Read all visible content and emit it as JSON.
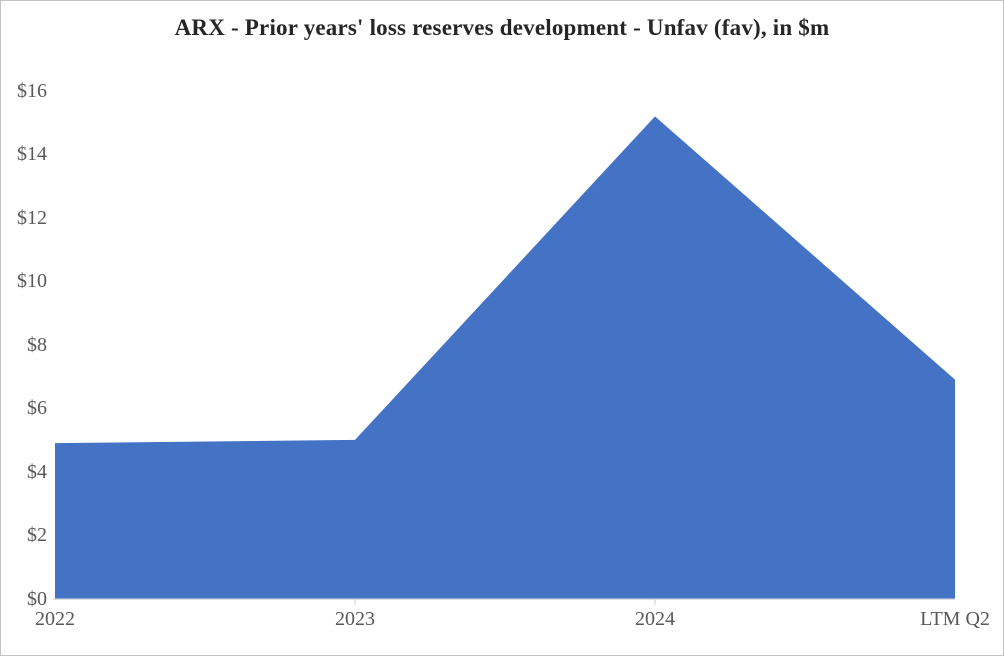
{
  "window": {
    "background": "#ffffff",
    "frame_border_color": "#c3c3c3"
  },
  "chart_data": {
    "type": "area",
    "title": "ARX - Prior years' loss reserves development - Unfav (fav), in $m",
    "categories": [
      "2022",
      "2023",
      "2024",
      "LTM Q2"
    ],
    "values": [
      4.9,
      5.0,
      15.2,
      6.9
    ],
    "xlabel": "",
    "ylabel": "",
    "ylim": [
      0,
      16
    ],
    "ytick_step": 2,
    "ytick_labels": [
      "$0",
      "$2",
      "$4",
      "$6",
      "$8",
      "$10",
      "$12",
      "$14",
      "$16"
    ],
    "grid": "off",
    "legend": "none",
    "colors": {
      "area_fill": "#4472C4",
      "axis_line": "#D9D9D9",
      "tick_mark": "#D9D9D9",
      "tick_label_text": "#595959",
      "title_text": "#262626"
    }
  }
}
